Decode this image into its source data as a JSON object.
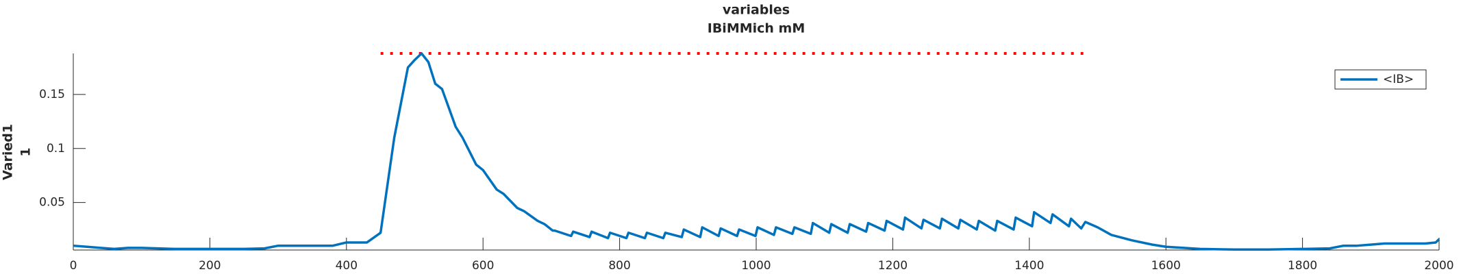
{
  "chart_data": {
    "type": "line",
    "title": [
      "variables",
      "IBiMMich mM"
    ],
    "ylabel": [
      "Varied1",
      "1"
    ],
    "x": [
      0,
      20,
      40,
      60,
      80,
      100,
      150,
      200,
      250,
      280,
      300,
      320,
      360,
      380,
      400,
      430,
      450,
      470,
      490,
      500,
      510,
      520,
      530,
      540,
      560,
      570,
      590,
      600,
      620,
      630,
      650,
      660,
      680,
      690,
      702,
      705,
      729,
      732,
      756,
      759,
      783,
      786,
      810,
      813,
      837,
      840,
      864,
      867,
      891,
      894,
      918,
      921,
      945,
      948,
      972,
      975,
      999,
      1002,
      1026,
      1029,
      1053,
      1056,
      1080,
      1083,
      1107,
      1110,
      1134,
      1137,
      1161,
      1164,
      1188,
      1191,
      1215,
      1218,
      1242,
      1245,
      1269,
      1272,
      1296,
      1299,
      1323,
      1326,
      1350,
      1353,
      1377,
      1380,
      1404,
      1407,
      1431,
      1434,
      1458,
      1461,
      1476,
      1482,
      1500,
      1520,
      1550,
      1580,
      1600,
      1650,
      1700,
      1750,
      1800,
      1840,
      1860,
      1880,
      1900,
      1920,
      1960,
      1980,
      1995,
      2000
    ],
    "series": [
      {
        "name": "<IB>",
        "color": "#0072bd",
        "values": [
          0.01,
          0.009,
          0.008,
          0.007,
          0.008,
          0.008,
          0.007,
          0.007,
          0.007,
          0.0075,
          0.01,
          0.01,
          0.01,
          0.01,
          0.013,
          0.013,
          0.022,
          0.11,
          0.175,
          0.182,
          0.188,
          0.18,
          0.16,
          0.155,
          0.12,
          0.11,
          0.085,
          0.08,
          0.062,
          0.058,
          0.045,
          0.042,
          0.033,
          0.03,
          0.024,
          0.024,
          0.019,
          0.023,
          0.018,
          0.023,
          0.017,
          0.022,
          0.017,
          0.022,
          0.017,
          0.022,
          0.017,
          0.022,
          0.018,
          0.025,
          0.018,
          0.027,
          0.019,
          0.026,
          0.019,
          0.025,
          0.019,
          0.027,
          0.02,
          0.027,
          0.021,
          0.027,
          0.021,
          0.031,
          0.022,
          0.03,
          0.022,
          0.03,
          0.023,
          0.031,
          0.024,
          0.033,
          0.025,
          0.036,
          0.026,
          0.034,
          0.026,
          0.035,
          0.026,
          0.034,
          0.025,
          0.033,
          0.024,
          0.033,
          0.025,
          0.036,
          0.028,
          0.041,
          0.031,
          0.039,
          0.028,
          0.035,
          0.026,
          0.032,
          0.027,
          0.02,
          0.015,
          0.011,
          0.009,
          0.007,
          0.0065,
          0.0065,
          0.007,
          0.0075,
          0.01,
          0.01,
          0.011,
          0.012,
          0.012,
          0.012,
          0.013,
          0.016
        ]
      }
    ],
    "reference_line": {
      "x": [
        450,
        1480
      ],
      "y": 0.188,
      "color": "#ff0000"
    },
    "xlim": [
      0,
      2000
    ],
    "xticks": [
      0,
      200,
      400,
      600,
      800,
      1000,
      1200,
      1400,
      1600,
      1800,
      2000
    ],
    "ylim": [
      0.006,
      0.188
    ],
    "yticks": [
      0.05,
      0.1,
      0.15
    ],
    "legend": "upper right"
  }
}
